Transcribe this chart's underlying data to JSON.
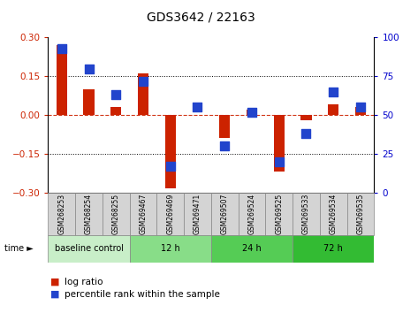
{
  "title": "GDS3642 / 22163",
  "samples": [
    "GSM268253",
    "GSM268254",
    "GSM268255",
    "GSM269467",
    "GSM269469",
    "GSM269471",
    "GSM269507",
    "GSM269524",
    "GSM269525",
    "GSM269533",
    "GSM269534",
    "GSM269535"
  ],
  "log_ratio": [
    0.27,
    0.1,
    0.03,
    0.16,
    -0.285,
    0.0,
    -0.09,
    0.02,
    -0.22,
    -0.02,
    0.04,
    0.03
  ],
  "percentile_rank": [
    93,
    80,
    63,
    72,
    17,
    55,
    30,
    52,
    20,
    38,
    65,
    55
  ],
  "bar_color": "#cc2200",
  "dot_color": "#2244cc",
  "group_colors": [
    "#c8eec8",
    "#88dd88",
    "#55cc55",
    "#33bb33"
  ],
  "group_labels": [
    "baseline control",
    "12 h",
    "24 h",
    "72 h"
  ],
  "group_starts": [
    0,
    3,
    6,
    9
  ],
  "group_ends": [
    3,
    6,
    9,
    12
  ],
  "ylim_left": [
    -0.3,
    0.3
  ],
  "ylim_right": [
    0,
    100
  ],
  "yticks_left": [
    -0.3,
    -0.15,
    0.0,
    0.15,
    0.3
  ],
  "yticks_right": [
    0,
    25,
    50,
    75,
    100
  ],
  "left_tick_color": "#cc2200",
  "right_tick_color": "#0000cc",
  "bar_width": 0.4,
  "dot_size": 55,
  "legend_items": [
    "log ratio",
    "percentile rank within the sample"
  ],
  "legend_colors": [
    "#cc2200",
    "#2244cc"
  ]
}
